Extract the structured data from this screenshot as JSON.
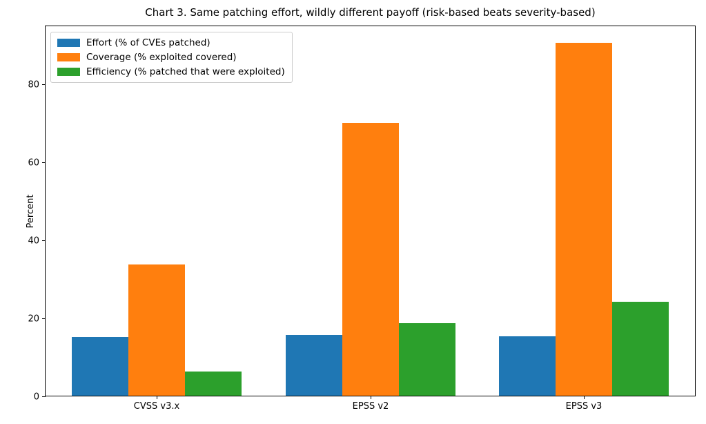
{
  "chart_data": {
    "type": "bar",
    "title": "Chart 3. Same patching effort, wildly different payoff (risk-based beats severity-based)",
    "ylabel": "Percent",
    "xlabel": "",
    "categories": [
      "CVSS v3.x",
      "EPSS v2",
      "EPSS v3"
    ],
    "series": [
      {
        "name": "Effort (% of CVEs patched)",
        "color": "#1f77b4",
        "values": [
          15.1,
          15.5,
          15.2
        ]
      },
      {
        "name": "Coverage (% exploited covered)",
        "color": "#ff7f0e",
        "values": [
          33.6,
          69.9,
          90.4
        ]
      },
      {
        "name": "Efficiency (% patched that were exploited)",
        "color": "#2ca02c",
        "values": [
          6.2,
          18.5,
          24.1
        ]
      }
    ],
    "ylim": [
      0,
      95
    ],
    "yticks": [
      0,
      20,
      40,
      60,
      80
    ],
    "grid": false,
    "legend_position": "upper left",
    "spine_color": "#000000"
  }
}
